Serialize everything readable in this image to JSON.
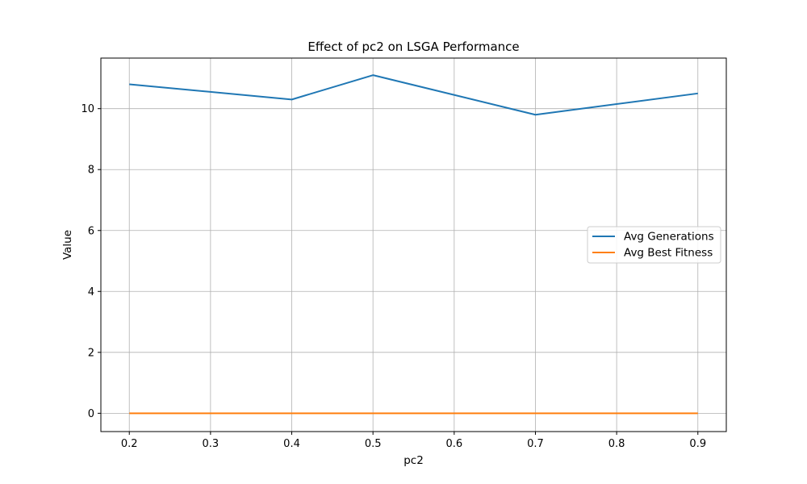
{
  "chart_data": {
    "type": "line",
    "title": "Effect of pc2 on LSGA Performance",
    "xlabel": "pc2",
    "ylabel": "Value",
    "x": [
      0.2,
      0.4,
      0.5,
      0.7,
      0.9
    ],
    "series": [
      {
        "name": "Avg Generations",
        "color": "#1f77b4",
        "values": [
          10.8,
          10.3,
          11.1,
          9.8,
          10.5
        ]
      },
      {
        "name": "Avg Best Fitness",
        "color": "#ff7f0e",
        "values": [
          0,
          0,
          0,
          0,
          0
        ]
      }
    ],
    "xlim": [
      0.165,
      0.935
    ],
    "ylim": [
      -0.6,
      11.66
    ],
    "xticks": [
      0.2,
      0.3,
      0.4,
      0.5,
      0.6,
      0.7,
      0.8,
      0.9
    ],
    "xtick_labels": [
      "0.2",
      "0.3",
      "0.4",
      "0.5",
      "0.6",
      "0.7",
      "0.8",
      "0.9"
    ],
    "yticks": [
      0,
      2,
      4,
      6,
      8,
      10
    ],
    "ytick_labels": [
      "0",
      "2",
      "4",
      "6",
      "8",
      "10"
    ],
    "grid": true,
    "legend_position": "center-right"
  }
}
